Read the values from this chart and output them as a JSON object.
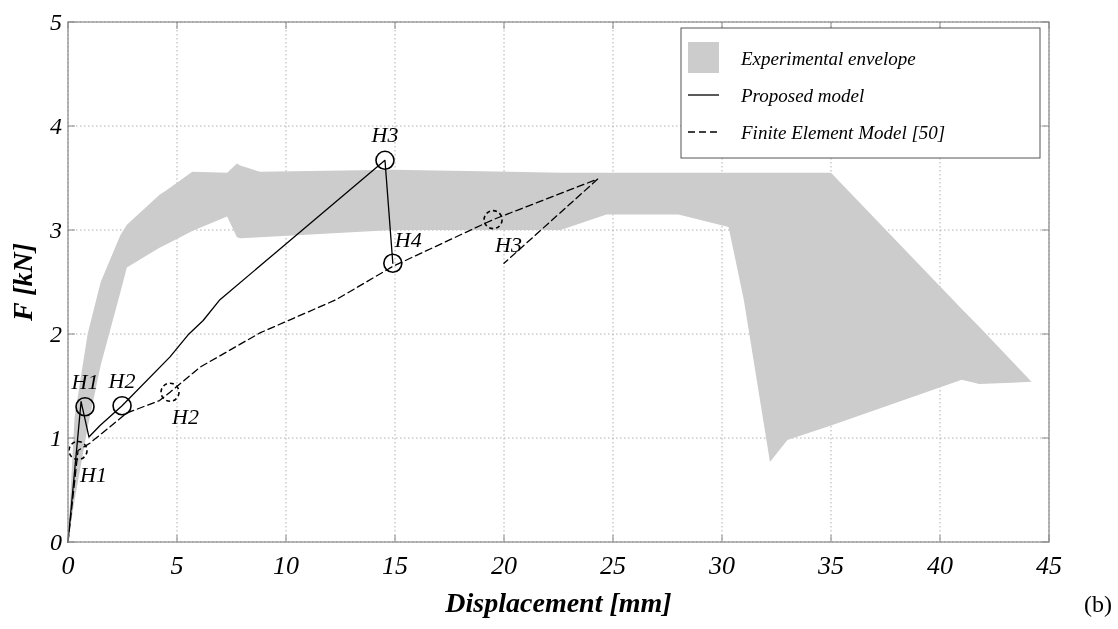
{
  "chart_data": {
    "type": "line",
    "xlabel": "Displacement [mm]",
    "ylabel": "F [kN]",
    "xlim": [
      0,
      45
    ],
    "xticks": [
      0,
      5,
      10,
      15,
      20,
      25,
      30,
      35,
      40,
      45
    ],
    "ylim": [
      0,
      5
    ],
    "yticks": [
      0,
      1,
      2,
      3,
      4,
      5
    ],
    "grid": true,
    "legend": "top right",
    "series": [
      {
        "type": "area",
        "name": "Experimental envelope",
        "color": "#cccccc",
        "x": [
          0,
          0.3,
          0.9,
          1.5,
          2.4,
          2.7,
          4.2,
          4.5,
          5.7,
          7.3,
          7.75,
          7.9,
          8.8,
          14.9,
          22.6,
          24.7,
          28,
          30.3,
          31,
          32.2,
          33,
          35,
          41,
          41.8,
          44.2
        ],
        "lower": [
          0,
          0.4,
          1.1,
          1.7,
          2.4,
          2.64,
          2.83,
          2.86,
          2.99,
          3.13,
          2.93,
          2.92,
          2.93,
          3.0,
          3.0,
          3.15,
          3.15,
          3.03,
          2.33,
          0.77,
          0.98,
          1.12,
          1.56,
          1.52,
          1.54
        ],
        "values": [
          null,
          null,
          null,
          null,
          null,
          null,
          null,
          null,
          null,
          null,
          null,
          null,
          null,
          null,
          null,
          null,
          null,
          null,
          null,
          null,
          null,
          null,
          null,
          null,
          null
        ],
        "upper": [
          0,
          1.2,
          2.0,
          2.5,
          2.95,
          3.05,
          3.34,
          3.38,
          3.56,
          3.55,
          3.64,
          3.62,
          3.56,
          3.58,
          3.55,
          3.55,
          3.55,
          3.55,
          3.55,
          3.55,
          3.55,
          3.55,
          2.24,
          2.07,
          1.54
        ]
      },
      {
        "type": "line",
        "name": "Proposed model",
        "color": "#000000",
        "line_style": "solid",
        "x": [
          0,
          0.6,
          0.96,
          1.47,
          2.48,
          4.68,
          5.5,
          6.2,
          6.97,
          14.54,
          14.9
        ],
        "values": [
          0,
          1.35,
          1.01,
          1.12,
          1.31,
          1.78,
          1.99,
          2.13,
          2.33,
          3.67,
          2.68
        ]
      },
      {
        "type": "line",
        "name": "Finite Element Model [50]",
        "color": "#000000",
        "line_style": "dashed",
        "x": [
          0,
          0.46,
          1.0,
          2.7,
          4.2,
          4.68,
          6.05,
          8.8,
          12.3,
          14.9,
          19.5,
          24.3,
          20.0
        ],
        "values": [
          0,
          0.88,
          0.95,
          1.24,
          1.36,
          1.44,
          1.68,
          2.01,
          2.33,
          2.65,
          3.1,
          3.49,
          2.68
        ]
      },
      {
        "type": "scatter",
        "color": "#000000",
        "marker": "circle",
        "line_style": "solid",
        "x": [
          0.78,
          2.48,
          14.54,
          14.9
        ],
        "values": [
          1.3,
          1.31,
          3.67,
          2.68
        ]
      },
      {
        "type": "scatter",
        "color": "#000000",
        "marker": "circle",
        "line_style": "dashed",
        "x": [
          0.46,
          4.68,
          19.5
        ],
        "values": [
          0.88,
          1.44,
          3.1
        ]
      }
    ],
    "annotations": [
      {
        "text": "H1",
        "x": 0.78,
        "y": 1.3
      },
      {
        "text": "H2",
        "x": 2.48,
        "y": 1.31
      },
      {
        "text": "H3",
        "x": 14.54,
        "y": 3.67
      },
      {
        "text": "H4",
        "x": 14.9,
        "y": 2.68
      },
      {
        "text": "H1",
        "x": 0.46,
        "y": 0.88
      },
      {
        "text": "H2",
        "x": 4.68,
        "y": 1.44
      },
      {
        "text": "H3",
        "x": 19.5,
        "y": 3.1
      },
      "(b)"
    ]
  }
}
